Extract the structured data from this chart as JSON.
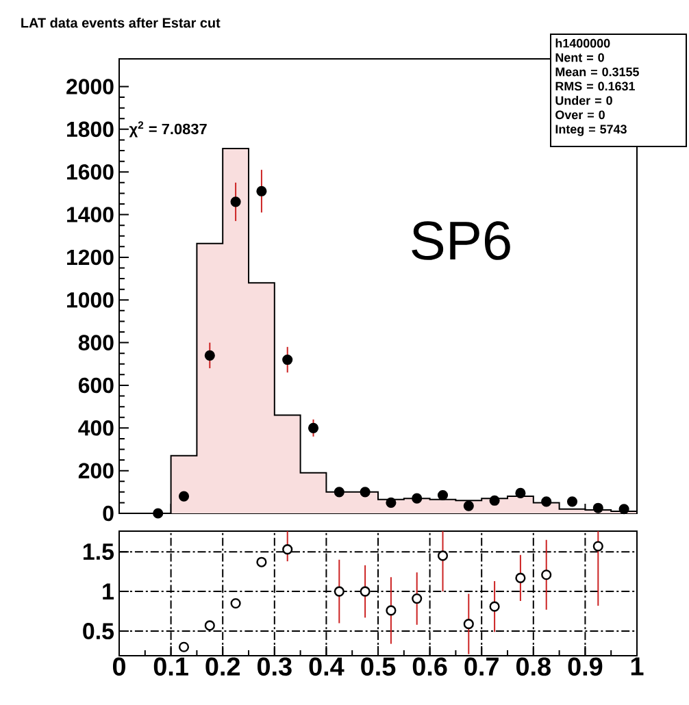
{
  "chart_data": [
    {
      "type": "histogram",
      "title": "LAT data events after Estar cut",
      "bins": [
        0.05,
        0.1,
        0.15,
        0.2,
        0.25,
        0.3,
        0.35,
        0.4,
        0.45,
        0.5,
        0.55,
        0.6,
        0.65,
        0.7,
        0.75,
        0.8,
        0.85,
        0.9,
        0.95,
        1.0
      ],
      "series": [
        {
          "type": "histogram",
          "color": "#f9dede",
          "values": [
            0,
            270,
            1265,
            1710,
            1080,
            460,
            190,
            100,
            100,
            65,
            70,
            65,
            60,
            70,
            80,
            50,
            20,
            16,
            10
          ]
        },
        {
          "type": "scatter",
          "color": "#000000",
          "x": [
            0.075,
            0.125,
            0.175,
            0.225,
            0.275,
            0.325,
            0.375,
            0.425,
            0.475,
            0.525,
            0.575,
            0.625,
            0.675,
            0.725,
            0.775,
            0.825,
            0.875,
            0.925,
            0.975
          ],
          "values": [
            0,
            80,
            740,
            1460,
            1510,
            720,
            400,
            100,
            100,
            50,
            70,
            85,
            35,
            60,
            95,
            55,
            55,
            25,
            20
          ],
          "errors": [
            null,
            null,
            60,
            90,
            100,
            60,
            40,
            null,
            null,
            null,
            null,
            null,
            null,
            null,
            null,
            null,
            null,
            null,
            null
          ]
        }
      ],
      "xlim": [
        0,
        1
      ],
      "xticks": [
        0,
        0.1,
        0.2,
        0.3,
        0.4,
        0.5,
        0.6,
        0.7,
        0.8,
        0.9,
        1
      ],
      "ylim": [
        0,
        2130
      ],
      "yticks": [
        0,
        200,
        400,
        600,
        800,
        1000,
        1200,
        1400,
        1600,
        1800,
        2000
      ],
      "tick_labels": "y",
      "annotations": [
        "χ$^{2}$ = 7.0837",
        "SP6",
        "h1400000",
        "Nent = 0",
        "Mean  = 0.3155",
        "RMS   = 0.1631",
        "Under =     0",
        "Over  =     0",
        "Integ =  5743"
      ]
    },
    {
      "type": "scatter",
      "color": "#000000",
      "x": [
        0.125,
        0.175,
        0.225,
        0.275,
        0.325,
        0.425,
        0.475,
        0.525,
        0.575,
        0.625,
        0.675,
        0.725,
        0.775,
        0.825,
        0.925
      ],
      "values": [
        0.3,
        0.57,
        0.85,
        1.37,
        1.53,
        1.0,
        1.0,
        0.76,
        0.91,
        1.45,
        0.59,
        0.81,
        1.17,
        1.21,
        1.57
      ],
      "errors": [
        null,
        null,
        null,
        null,
        [
          1.38,
          1.76
        ],
        0.4,
        0.33,
        0.42,
        0.33,
        [
          1.0,
          1.76
        ],
        0.38,
        0.32,
        0.29,
        0.44,
        [
          0.82,
          1.76
        ]
      ],
      "xlim": [
        0,
        1
      ],
      "xticks": [
        0,
        0.1,
        0.2,
        0.3,
        0.4,
        0.5,
        0.6,
        0.7,
        0.8,
        0.9,
        1
      ],
      "ylim": [
        0.19,
        1.76
      ],
      "yticks": [
        0.5,
        1,
        1.5
      ],
      "grid": true
    }
  ]
}
